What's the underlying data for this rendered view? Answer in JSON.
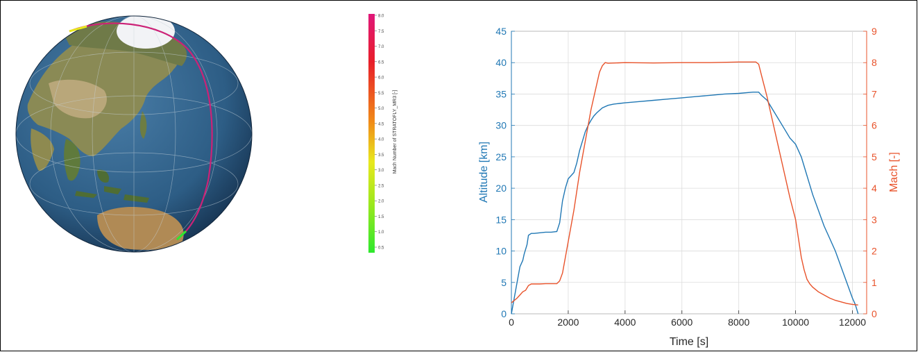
{
  "globe": {
    "colorbar_label": "Mach Number of STRATOFLY_MR3 [-]",
    "colorbar_ticks": [
      "8.0",
      "7.5",
      "7.0",
      "6.5",
      "6.0",
      "5.5",
      "5.0",
      "4.5",
      "4.0",
      "3.5",
      "3.0",
      "2.5",
      "2.0",
      "1.5",
      "1.0",
      "0.5"
    ],
    "colors": {
      "ocean": "#2d5d85",
      "land": "#8a8a55",
      "ice": "#f2f3f6",
      "track": "#cc2277"
    }
  },
  "chart_data": {
    "type": "line",
    "xlabel": "Time [s]",
    "ylabel": "Altitude [km]",
    "y2label": "Mach [-]",
    "xlim": [
      0,
      12500
    ],
    "ylim": [
      0,
      45
    ],
    "y2lim": [
      0,
      9
    ],
    "x_ticks": [
      "0",
      "2000",
      "4000",
      "6000",
      "8000",
      "10000",
      "12000"
    ],
    "y_ticks": [
      "0",
      "5",
      "10",
      "15",
      "20",
      "25",
      "30",
      "35",
      "40",
      "45"
    ],
    "y2_ticks": [
      "0",
      "1",
      "2",
      "3",
      "4",
      "5",
      "6",
      "7",
      "8",
      "9"
    ],
    "grid": true,
    "colors": {
      "altitude": "#1f77b4",
      "mach": "#e8522a"
    },
    "series": [
      {
        "axis": "left",
        "x": [
          0,
          100,
          200,
          300,
          400,
          450,
          550,
          600,
          700,
          800,
          1000,
          1200,
          1400,
          1600,
          1700,
          1800,
          1900,
          2000,
          2100,
          2200,
          2300,
          2400,
          2500,
          2600,
          2700,
          2800,
          2900,
          3000,
          3200,
          3400,
          3600,
          3800,
          4000,
          4500,
          5000,
          5500,
          6000,
          6500,
          7000,
          7500,
          8000,
          8500,
          8700,
          8800,
          9000,
          9200,
          9400,
          9600,
          9800,
          10000,
          10200,
          10400,
          10600,
          10800,
          11000,
          11200,
          11400,
          11600,
          11800,
          12000,
          12100,
          12200
        ],
        "y": [
          0,
          2.5,
          5,
          7.5,
          8.5,
          9.5,
          11,
          12.5,
          12.8,
          12.8,
          12.9,
          13,
          13,
          13.1,
          14.5,
          18,
          20,
          21.5,
          22,
          22.5,
          24,
          26,
          27.5,
          29,
          30,
          30.8,
          31.5,
          32,
          32.8,
          33.2,
          33.4,
          33.5,
          33.6,
          33.8,
          34,
          34.2,
          34.4,
          34.6,
          34.8,
          35,
          35.1,
          35.3,
          35.3,
          34.8,
          34,
          32.5,
          31,
          29.5,
          28,
          27,
          25,
          22,
          19,
          16.5,
          14,
          12,
          10,
          7.5,
          5,
          2.5,
          1.5,
          0
        ]
      },
      {
        "axis": "right",
        "x": [
          0,
          200,
          300,
          400,
          500,
          600,
          700,
          1000,
          1200,
          1400,
          1600,
          1700,
          1800,
          1900,
          2000,
          2200,
          2400,
          2600,
          2800,
          3000,
          3100,
          3200,
          3300,
          3400,
          4000,
          5000,
          6000,
          7000,
          8000,
          8600,
          8700,
          8800,
          9000,
          9200,
          9400,
          9600,
          9800,
          10000,
          10100,
          10200,
          10300,
          10400,
          10500,
          10600,
          10800,
          11000,
          11200,
          11400,
          11600,
          11800,
          12000,
          12200
        ],
        "y": [
          0.35,
          0.5,
          0.6,
          0.7,
          0.75,
          0.9,
          0.95,
          0.95,
          0.96,
          0.96,
          0.96,
          1.05,
          1.3,
          1.8,
          2.3,
          3.3,
          4.5,
          5.5,
          6.5,
          7.3,
          7.7,
          7.9,
          8,
          7.98,
          8,
          7.99,
          8,
          8,
          8.02,
          8.02,
          7.95,
          7.6,
          6.9,
          6.1,
          5.3,
          4.5,
          3.7,
          3.0,
          2.4,
          1.8,
          1.4,
          1.1,
          0.95,
          0.85,
          0.7,
          0.6,
          0.5,
          0.43,
          0.38,
          0.33,
          0.3,
          0.28
        ]
      }
    ]
  }
}
